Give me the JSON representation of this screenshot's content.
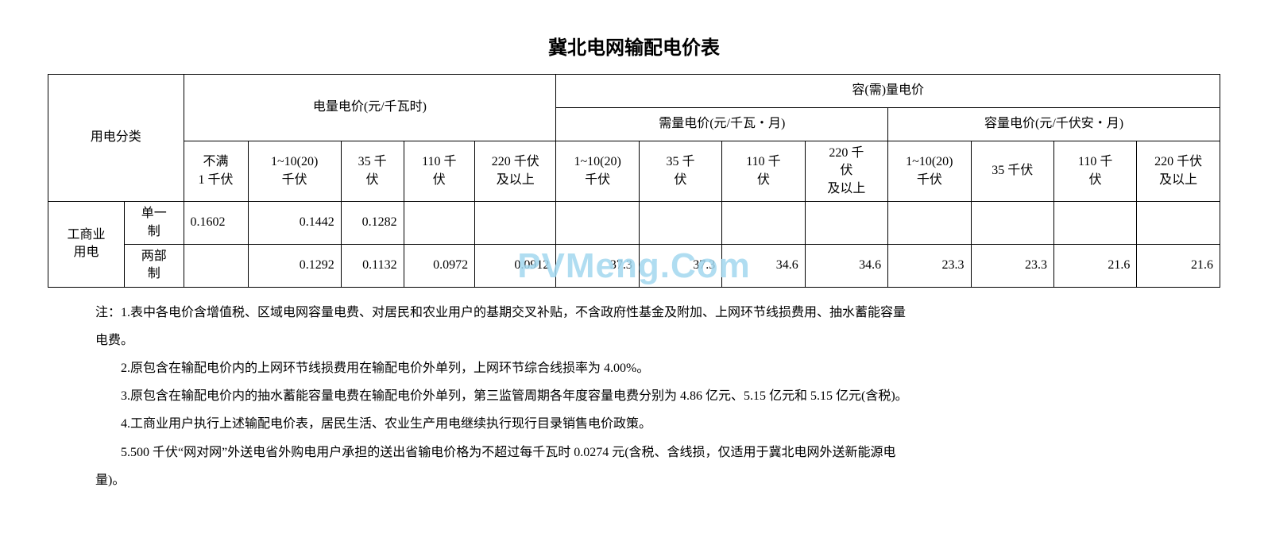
{
  "title": "冀北电网输配电价表",
  "watermark": "PVMeng.Com",
  "headers": {
    "category_label": "用电分类",
    "energy_group": "电量电价(元/千瓦时)",
    "capacity_group": "容(需)量电价",
    "demand_group": "需量电价(元/千瓦・月)",
    "cap_group": "容量电价(元/千伏安・月)",
    "energy_cols": [
      "不满\n1 千伏",
      "1~10(20)\n千伏",
      "35 千\n伏",
      "110 千\n伏",
      "220 千伏\n及以上"
    ],
    "demand_cols": [
      "1~10(20)\n千伏",
      "35 千\n伏",
      "110 千\n伏",
      "220 千\n伏\n及以上"
    ],
    "cap_cols": [
      "1~10(20)\n千伏",
      "35 千伏",
      "110 千\n伏",
      "220 千伏\n及以上"
    ]
  },
  "rows": {
    "group_label": "工商业\n用电",
    "r1": {
      "label": "单一\n制",
      "cells": [
        "0.1602",
        "0.1442",
        "0.1282",
        "",
        "",
        "",
        "",
        "",
        "",
        "",
        "",
        "",
        ""
      ]
    },
    "r2": {
      "label": "两部\n制",
      "cells": [
        "",
        "0.1292",
        "0.1132",
        "0.0972",
        "0.0912",
        "37.3",
        "37.3",
        "34.6",
        "34.6",
        "23.3",
        "23.3",
        "21.6",
        "21.6"
      ]
    }
  },
  "notes": {
    "n1a": "注：1.表中各电价含增值税、区域电网容量电费、对居民和农业用户的基期交叉补贴，不含政府性基金及附加、上网环节线损费用、抽水蓄能容量",
    "n1b": "电费。",
    "n2": "2.原包含在输配电价内的上网环节线损费用在输配电价外单列，上网环节综合线损率为 4.00%。",
    "n3": "3.原包含在输配电价内的抽水蓄能容量电费在输配电价外单列，第三监管周期各年度容量电费分别为 4.86 亿元、5.15 亿元和 5.15 亿元(含税)。",
    "n4": "4.工商业用户执行上述输配电价表，居民生活、农业生产用电继续执行现行目录销售电价政策。",
    "n5a": "5.500 千伏“网对网”外送电省外购电用户承担的送出省输电价格为不超过每千瓦时 0.0274 元(含税、含线损，仅适用于冀北电网外送新能源电",
    "n5b": "量)。"
  }
}
